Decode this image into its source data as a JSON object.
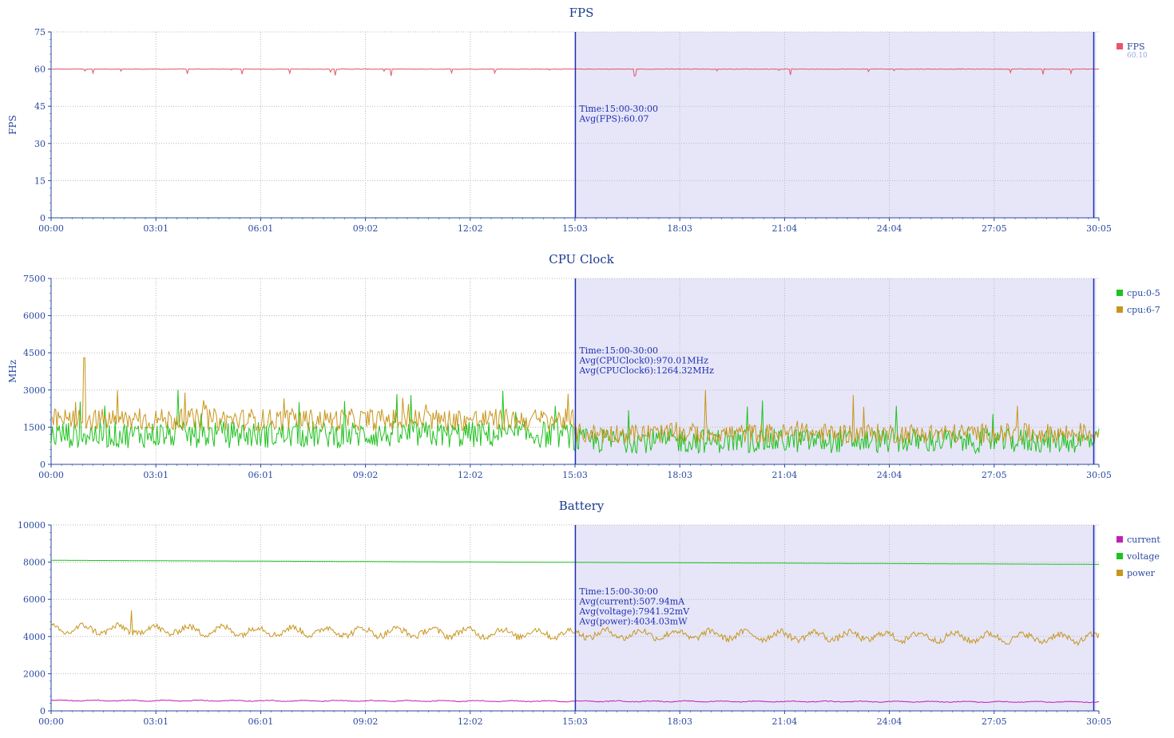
{
  "chart_data": [
    {
      "type": "line",
      "title": "FPS",
      "ylabel": "FPS",
      "ylim": [
        0,
        75
      ],
      "yticks": [
        0,
        15,
        30,
        45,
        60,
        75
      ],
      "xticks": [
        "00:00",
        "03:01",
        "06:01",
        "09:02",
        "12:02",
        "15:03",
        "18:03",
        "21:04",
        "24:04",
        "27:05",
        "30:05"
      ],
      "x_range_minutes": [
        0,
        30.08
      ],
      "grid": true,
      "legend_position": "right",
      "series": [
        {
          "name": "FPS",
          "legend_sub": "60.10",
          "color": "#e8566a",
          "base": 60,
          "noise": 0.25,
          "dip_count": 30,
          "dip_max": 3
        }
      ],
      "selection": {
        "from_minutes": 15.05,
        "to_minutes": 30.0
      },
      "annotation": [
        "Time:15:00-30:00",
        "Avg(FPS):60.07"
      ]
    },
    {
      "type": "line",
      "title": "CPU Clock",
      "ylabel": "MHz",
      "ylim": [
        0,
        7500
      ],
      "yticks": [
        0,
        1500,
        3000,
        4500,
        6000,
        7500
      ],
      "xticks": [
        "00:00",
        "03:01",
        "06:01",
        "09:02",
        "12:02",
        "15:03",
        "18:03",
        "21:04",
        "24:04",
        "27:05",
        "30:05"
      ],
      "x_range_minutes": [
        0,
        30.08
      ],
      "grid": true,
      "legend_position": "right",
      "series": [
        {
          "name": "cpu:0-5",
          "color": "#1fc21f",
          "segments": [
            {
              "from": 0,
              "to": 15.0,
              "base": 1200,
              "spread": 550,
              "spike_prob": 0.03,
              "spike_max": 3050
            },
            {
              "from": 15.0,
              "to": 30.08,
              "base": 950,
              "spread": 500,
              "spike_prob": 0.025,
              "spike_max": 3050
            }
          ]
        },
        {
          "name": "cpu:6-7",
          "color": "#c8961e",
          "segments": [
            {
              "from": 0,
              "to": 15.0,
              "base": 1800,
              "spread": 450,
              "spike_prob": 0.03,
              "spike_max": 3050
            },
            {
              "from": 15.0,
              "to": 30.08,
              "base": 1250,
              "spread": 400,
              "spike_prob": 0.02,
              "spike_max": 3050
            }
          ],
          "peak": {
            "at_minutes": 0.95,
            "value": 4300
          }
        }
      ],
      "selection": {
        "from_minutes": 15.05,
        "to_minutes": 30.0
      },
      "annotation": [
        "Time:15:00-30:00",
        "Avg(CPUClock0):970.01MHz",
        "Avg(CPUClock6):1264.32MHz"
      ]
    },
    {
      "type": "line",
      "title": "Battery",
      "ylabel": "",
      "ylim": [
        0,
        10000
      ],
      "yticks": [
        0,
        2000,
        4000,
        6000,
        8000,
        10000
      ],
      "xticks": [
        "00:00",
        "03:01",
        "06:01",
        "09:02",
        "12:02",
        "15:03",
        "18:03",
        "21:04",
        "24:04",
        "27:05",
        "30:05"
      ],
      "x_range_minutes": [
        0,
        30.08
      ],
      "grid": true,
      "legend_position": "right",
      "series": [
        {
          "name": "current",
          "color": "#c21fb4",
          "start": 560,
          "end": 480,
          "wobble": 40
        },
        {
          "name": "voltage",
          "color": "#1fc21f",
          "start": 8100,
          "end": 7880,
          "wobble": 0
        },
        {
          "name": "power",
          "color": "#c8961e",
          "start": 4400,
          "end": 3900,
          "wobble": 350,
          "peak": {
            "at_minutes": 2.3,
            "value": 5400
          }
        }
      ],
      "selection": {
        "from_minutes": 15.05,
        "to_minutes": 30.0
      },
      "annotation": [
        "Time:15:00-30:00",
        "Avg(current):507.94mA",
        "Avg(voltage):7941.92mV",
        "Avg(power):4034.03mW"
      ]
    }
  ]
}
